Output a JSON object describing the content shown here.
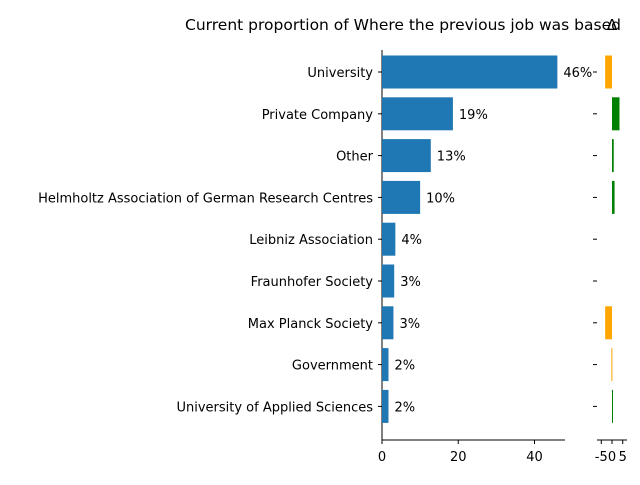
{
  "chart_data": [
    {
      "type": "bar",
      "orientation": "horizontal",
      "title": "Current proportion of Where the previous job was based",
      "xlabel": "",
      "ylabel": "",
      "xlim": [
        0,
        48
      ],
      "xticks": [
        "0",
        "20",
        "40"
      ],
      "grid": false,
      "categories": [
        "University of Applied Sciences",
        "Government",
        "Max Planck Society",
        "Fraunhofer Society",
        "Leibniz Association",
        "Helmholtz Association of German Research Centres",
        "Other",
        "Private Company",
        "University"
      ],
      "values": [
        1.7,
        1.7,
        3.0,
        3.2,
        3.5,
        10.0,
        12.8,
        18.6,
        46.0
      ],
      "data_labels": [
        "2%",
        "2%",
        "3%",
        "3%",
        "4%",
        "10%",
        "13%",
        "19%",
        "46%"
      ],
      "color": "#1f77b4"
    },
    {
      "type": "bar",
      "orientation": "horizontal",
      "title": "Δ",
      "xlim": [
        -7,
        7
      ],
      "xticks": [
        "-5",
        "0",
        "5"
      ],
      "categories": [
        "University of Applied Sciences",
        "Government",
        "Max Planck Society",
        "Fraunhofer Society",
        "Leibniz Association",
        "Helmholtz Association of German Research Centres",
        "Other",
        "Private Company",
        "University"
      ],
      "values": [
        0.3,
        -0.3,
        -3.2,
        0,
        0,
        1.2,
        0.8,
        3.5,
        -3.2
      ],
      "positive_color": "#008000",
      "negative_color": "#ffa500"
    }
  ]
}
